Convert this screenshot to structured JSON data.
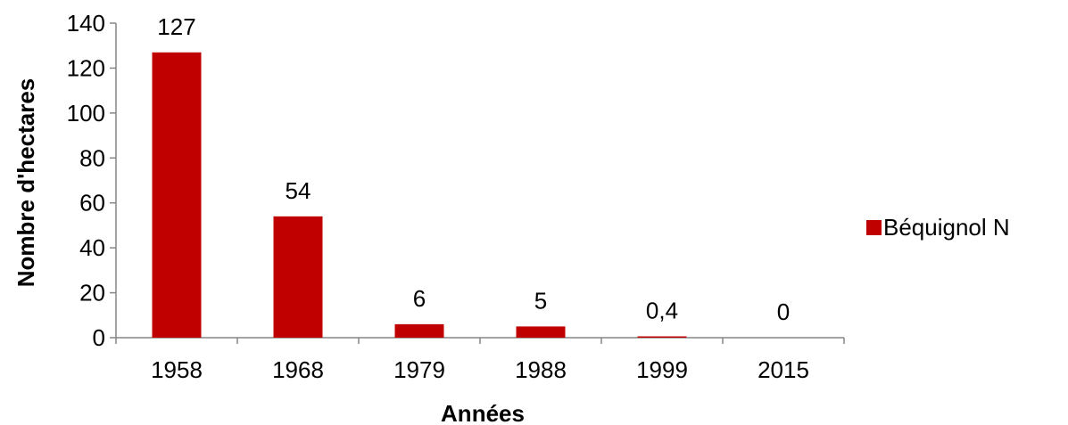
{
  "chart_data": {
    "type": "bar",
    "categories": [
      "1958",
      "1968",
      "1979",
      "1988",
      "1999",
      "2015"
    ],
    "series": [
      {
        "name": "Béquignol N",
        "values": [
          127,
          54,
          6,
          5,
          0.4,
          0
        ],
        "labels": [
          "127",
          "54",
          "6",
          "5",
          "0,4",
          "0"
        ],
        "color": "#C00000"
      }
    ],
    "xlabel": "Années",
    "ylabel": "Nombre d'hectares",
    "ylim": [
      0,
      140
    ],
    "yticks": [
      0,
      20,
      40,
      60,
      80,
      100,
      120,
      140
    ],
    "grid": false,
    "legend": "right"
  }
}
